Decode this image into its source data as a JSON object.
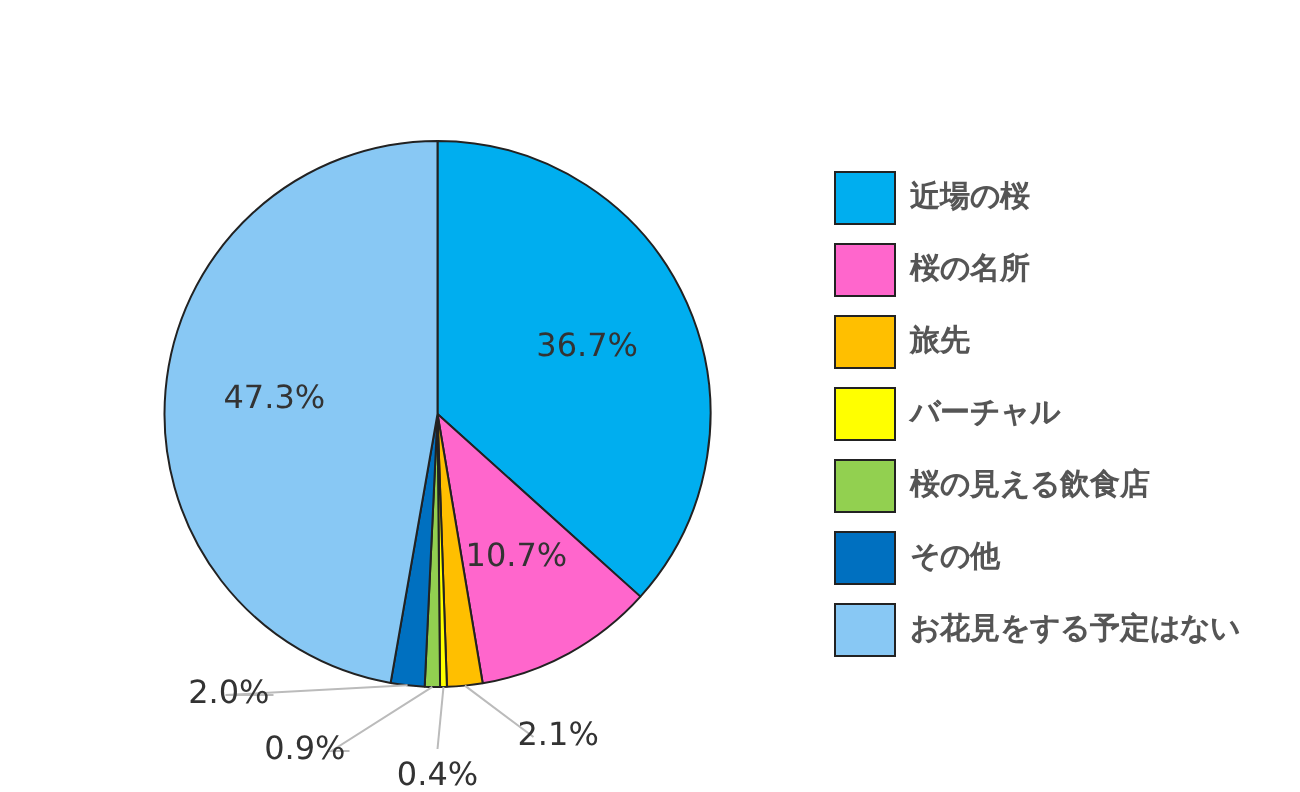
{
  "chart_data": {
    "type": "pie",
    "categories": [
      "近場の桜",
      "桜の名所",
      "旅先",
      "バーチャル",
      "桜の見える飲食店",
      "その他",
      "お花見をする予定はない"
    ],
    "values": [
      36.7,
      10.7,
      2.1,
      0.4,
      0.9,
      2.0,
      47.3
    ],
    "colors": [
      "#00aeef",
      "#ff66cc",
      "#ffbf00",
      "#ffff00",
      "#92d050",
      "#0070c0",
      "#88c8f4"
    ],
    "value_labels": [
      "36.7%",
      "10.7%",
      "2.1%",
      "0.4%",
      "0.9%",
      "2.0%",
      "47.3%"
    ],
    "legend": "right"
  }
}
